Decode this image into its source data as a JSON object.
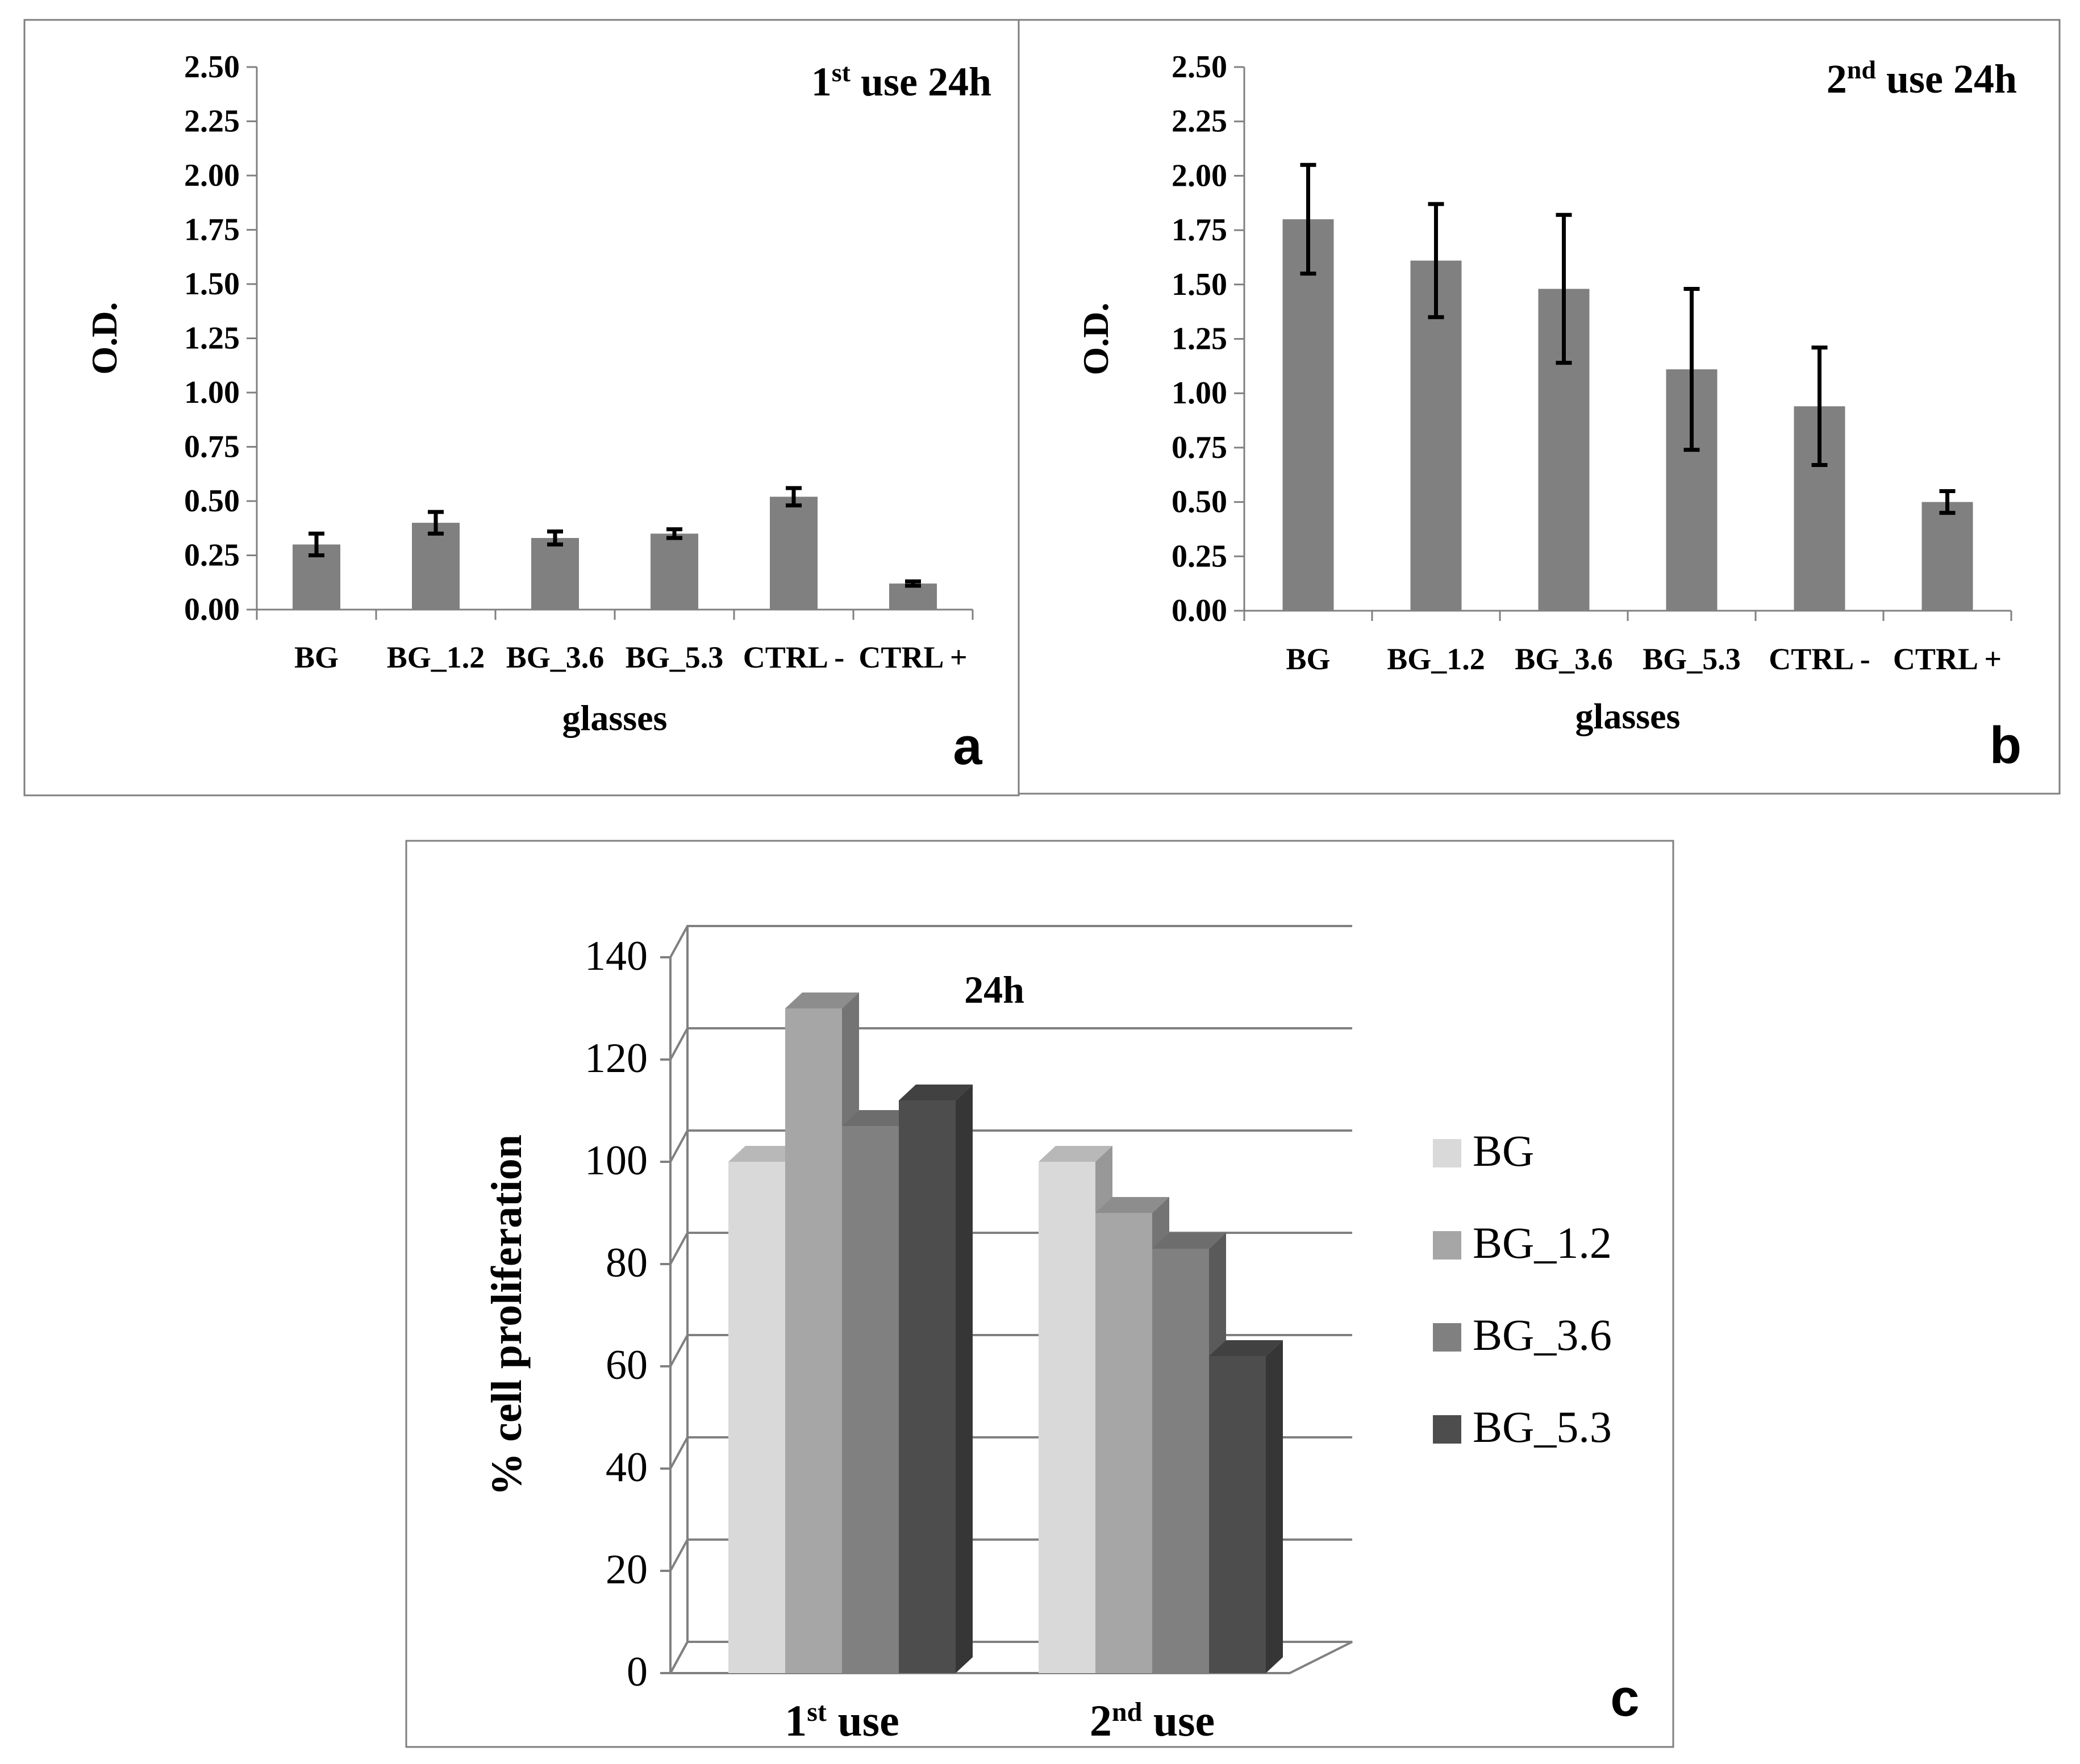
{
  "chart_data": [
    {
      "panel_letter": "a",
      "type": "bar",
      "title_main": "1",
      "title_sup": "st",
      "title_rest": " use 24h",
      "xlabel": "glasses",
      "ylabel": "O.D.",
      "categories": [
        "BG",
        "BG_1.2",
        "BG_3.6",
        "BG_5.3",
        "CTRL -",
        "CTRL +"
      ],
      "values": [
        0.3,
        0.4,
        0.33,
        0.35,
        0.52,
        0.12
      ],
      "errors": [
        0.05,
        0.05,
        0.03,
        0.02,
        0.04,
        0.01
      ],
      "ylim": [
        0,
        2.5
      ],
      "yticks": [
        "0.00",
        "0.25",
        "0.50",
        "0.75",
        "1.00",
        "1.25",
        "1.50",
        "1.75",
        "2.00",
        "2.25",
        "2.50"
      ],
      "bar_color": "#808080"
    },
    {
      "panel_letter": "b",
      "type": "bar",
      "title_main": "2",
      "title_sup": "nd",
      "title_rest": " use 24h",
      "xlabel": "glasses",
      "ylabel": "O.D.",
      "categories": [
        "BG",
        "BG_1.2",
        "BG_3.6",
        "BG_5.3",
        "CTRL -",
        "CTRL +"
      ],
      "values": [
        1.8,
        1.61,
        1.48,
        1.11,
        0.94,
        0.5
      ],
      "errors": [
        0.25,
        0.26,
        0.34,
        0.37,
        0.27,
        0.05
      ],
      "ylim": [
        0,
        2.5
      ],
      "yticks": [
        "0.00",
        "0.25",
        "0.50",
        "0.75",
        "1.00",
        "1.25",
        "1.50",
        "1.75",
        "2.00",
        "2.25",
        "2.50"
      ],
      "bar_color": "#808080"
    },
    {
      "panel_letter": "c",
      "type": "bar",
      "title": "24h",
      "ylabel": "% cell proliferation",
      "groups": [
        {
          "main": "1",
          "sup": "st",
          "rest": " use"
        },
        {
          "main": "2",
          "sup": "nd",
          "rest": " use"
        }
      ],
      "ylim": [
        0,
        140
      ],
      "yticks": [
        "0",
        "20",
        "40",
        "60",
        "80",
        "100",
        "120",
        "140"
      ],
      "series": [
        {
          "name": "BG",
          "values": [
            100,
            100
          ],
          "color": "#d9d9d9"
        },
        {
          "name": "BG_1.2",
          "values": [
            130,
            90
          ],
          "color": "#a6a6a6"
        },
        {
          "name": "BG_3.6",
          "values": [
            107,
            83
          ],
          "color": "#808080"
        },
        {
          "name": "BG_5.3",
          "values": [
            112,
            62
          ],
          "color": "#4d4d4d"
        }
      ],
      "legend_position": "right"
    }
  ]
}
